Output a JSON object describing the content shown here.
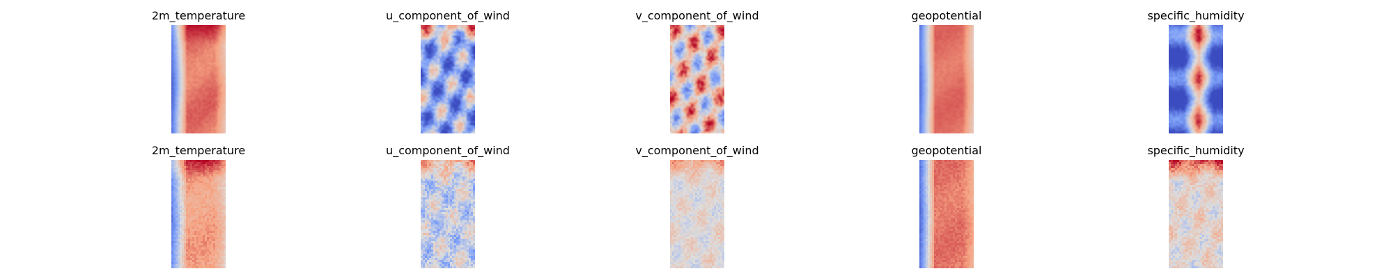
{
  "chart_data": [
    {
      "type": "heatmap",
      "title": "2m_temperature",
      "colormap": "coolwarm",
      "grid": false,
      "axes_visible": false,
      "pattern": "smooth-band",
      "base": 0.82,
      "left_edge": 0.12,
      "right_edge": 0.65,
      "noise": 0.08,
      "hot_top": 0.12
    },
    {
      "type": "heatmap",
      "title": "u_component_of_wind",
      "colormap": "coolwarm",
      "grid": false,
      "axes_visible": false,
      "pattern": "smooth-noise",
      "base": 0.3,
      "left_edge": 0.3,
      "right_edge": 0.3,
      "noise": 0.35,
      "hot_top": 0.35
    },
    {
      "type": "heatmap",
      "title": "v_component_of_wind",
      "colormap": "coolwarm",
      "grid": false,
      "axes_visible": false,
      "pattern": "smooth-noise",
      "base": 0.58,
      "left_edge": 0.5,
      "right_edge": 0.5,
      "noise": 0.38,
      "hot_top": 0.0
    },
    {
      "type": "heatmap",
      "title": "geopotential",
      "colormap": "coolwarm",
      "grid": false,
      "axes_visible": false,
      "pattern": "smooth-band",
      "base": 0.83,
      "left_edge": 0.14,
      "right_edge": 0.62,
      "noise": 0.05,
      "hot_top": 0.0
    },
    {
      "type": "heatmap",
      "title": "specific_humidity",
      "colormap": "coolwarm",
      "grid": false,
      "axes_visible": false,
      "pattern": "smooth-center",
      "base": 0.1,
      "left_edge": 0.05,
      "right_edge": 0.05,
      "noise": 0.18,
      "hot_top": 0.1
    },
    {
      "type": "heatmap",
      "title": "2m_temperature",
      "colormap": "coolwarm",
      "grid": false,
      "axes_visible": false,
      "pattern": "blocky-band",
      "base": 0.74,
      "left_edge": 0.18,
      "right_edge": 0.6,
      "noise": 0.06,
      "hot_top": 0.2
    },
    {
      "type": "heatmap",
      "title": "u_component_of_wind",
      "colormap": "coolwarm",
      "grid": false,
      "axes_visible": false,
      "pattern": "blocky-noise",
      "base": 0.44,
      "left_edge": 0.44,
      "right_edge": 0.44,
      "noise": 0.14,
      "hot_top": 0.25
    },
    {
      "type": "heatmap",
      "title": "v_component_of_wind",
      "colormap": "coolwarm",
      "grid": false,
      "axes_visible": false,
      "pattern": "blocky-noise",
      "base": 0.52,
      "left_edge": 0.52,
      "right_edge": 0.52,
      "noise": 0.08,
      "hot_top": 0.2
    },
    {
      "type": "heatmap",
      "title": "geopotential",
      "colormap": "coolwarm",
      "grid": false,
      "axes_visible": false,
      "pattern": "blocky-band",
      "base": 0.82,
      "left_edge": 0.12,
      "right_edge": 0.72,
      "noise": 0.04,
      "hot_top": 0.0
    },
    {
      "type": "heatmap",
      "title": "specific_humidity",
      "colormap": "coolwarm",
      "grid": false,
      "axes_visible": false,
      "pattern": "blocky-noise",
      "base": 0.54,
      "left_edge": 0.45,
      "right_edge": 0.5,
      "noise": 0.1,
      "hot_top": 0.35
    }
  ]
}
